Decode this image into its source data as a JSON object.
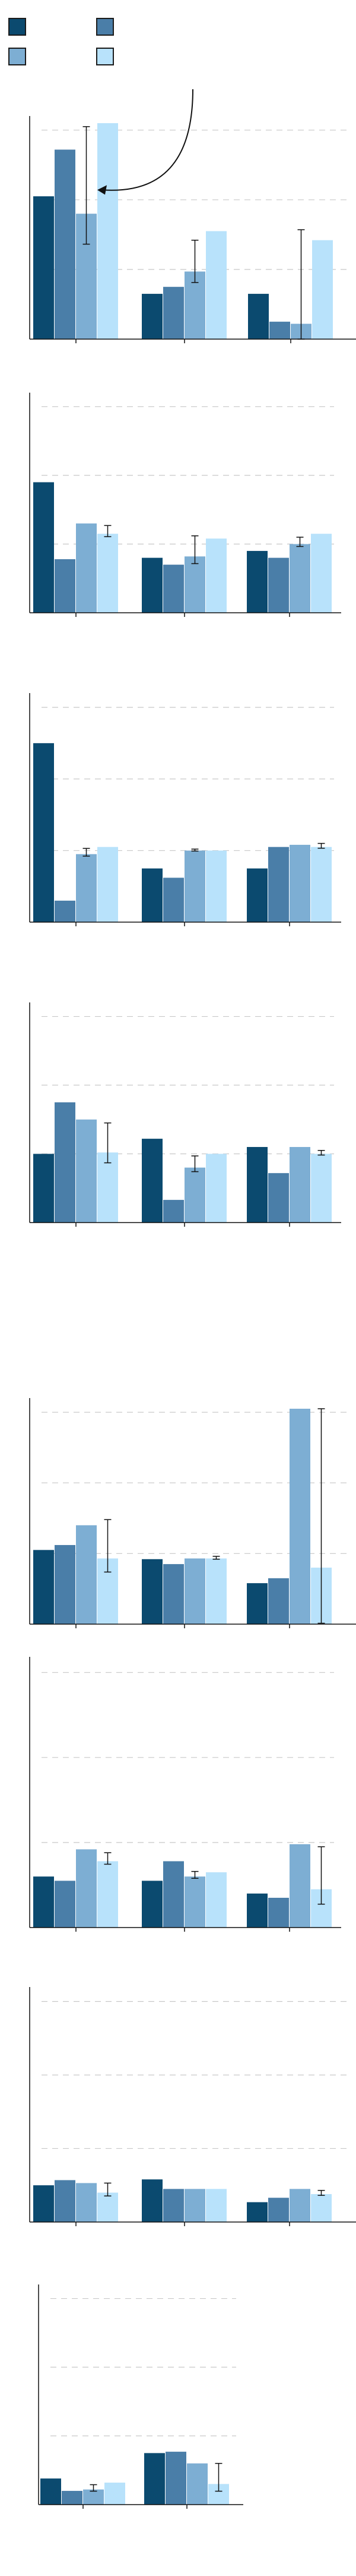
{
  "legend": {
    "entries": [
      {
        "name": "",
        "color": "#0b4a6f"
      },
      {
        "name": "",
        "color": "#4a7ea8"
      },
      {
        "name": "",
        "color": "#7daed3"
      },
      {
        "name": "",
        "color": "#b8e2fb"
      }
    ],
    "edge_color": "#1b1b1b"
  },
  "style": {
    "gridline_color": "#c8c8c8",
    "gridline_dash": "dashed",
    "axis_color": "#111111",
    "errorbar_color": "#111111",
    "annotation_arrow_color": "#111111"
  },
  "chart_data": [
    {
      "type": "bar",
      "title": "",
      "xlabel": "",
      "ylabel": "",
      "grid": true,
      "legend": "top-left",
      "ylim": [
        0,
        3.1
      ],
      "gridlines": [
        1,
        2,
        3
      ],
      "categories": [
        "",
        "",
        ""
      ],
      "series": [
        {
          "values": [
            2.05,
            0.65,
            0.65
          ],
          "errors": [
            null,
            null,
            null
          ]
        },
        {
          "values": [
            2.72,
            0.75,
            0.25
          ],
          "errors": [
            null,
            null,
            null
          ]
        },
        {
          "values": [
            1.8,
            0.97,
            0.22
          ],
          "errors": [
            1.25,
            0.45,
            1.35
          ]
        },
        {
          "values": [
            3.1,
            1.55,
            1.42
          ],
          "errors": [
            null,
            null,
            null
          ]
        }
      ],
      "annotation": {
        "type": "arrow",
        "from": "above",
        "to_category": 0,
        "to_series": 2
      }
    },
    {
      "type": "bar",
      "title": "",
      "xlabel": "",
      "ylabel": "",
      "grid": true,
      "ylim": [
        0,
        3.1
      ],
      "gridlines": [
        1,
        2,
        3
      ],
      "categories": [
        "",
        "",
        ""
      ],
      "series": [
        {
          "values": [
            1.9,
            0.8,
            0.9
          ],
          "errors": [
            null,
            null,
            null
          ]
        },
        {
          "values": [
            0.78,
            0.7,
            0.8
          ],
          "errors": [
            null,
            null,
            null
          ]
        },
        {
          "values": [
            1.3,
            0.82,
            1.0
          ],
          "errors": [
            null,
            0.3,
            0.1
          ]
        },
        {
          "values": [
            1.15,
            1.08,
            1.15
          ],
          "errors": [
            0.12,
            null,
            null
          ]
        }
      ]
    },
    {
      "type": "bar",
      "title": "",
      "xlabel": "",
      "ylabel": "",
      "grid": true,
      "ylim": [
        0,
        3.1
      ],
      "gridlines": [
        1,
        2,
        3
      ],
      "categories": [
        "",
        "",
        ""
      ],
      "series": [
        {
          "values": [
            2.5,
            0.75,
            0.75
          ],
          "errors": [
            null,
            null,
            null
          ]
        },
        {
          "values": [
            0.3,
            0.62,
            1.05
          ],
          "errors": [
            null,
            null,
            null
          ]
        },
        {
          "values": [
            0.95,
            1.0,
            1.08
          ],
          "errors": [
            0.08,
            0.02,
            null
          ]
        },
        {
          "values": [
            1.05,
            1.0,
            1.05
          ],
          "errors": [
            null,
            null,
            0.05
          ]
        }
      ]
    },
    {
      "type": "bar",
      "title": "",
      "xlabel": "",
      "ylabel": "",
      "grid": true,
      "ylim": [
        0,
        3.1
      ],
      "gridlines": [
        1,
        2,
        3
      ],
      "categories": [
        "",
        "",
        ""
      ],
      "series": [
        {
          "values": [
            1.0,
            1.22,
            1.1
          ],
          "errors": [
            null,
            null,
            null
          ]
        },
        {
          "values": [
            1.75,
            0.33,
            0.72
          ],
          "errors": [
            null,
            null,
            null
          ]
        },
        {
          "values": [
            1.5,
            0.8,
            1.1
          ],
          "errors": [
            null,
            0.17,
            null
          ]
        },
        {
          "values": [
            1.02,
            1.0,
            1.0
          ],
          "errors": [
            0.43,
            null,
            0.05
          ]
        }
      ]
    },
    {
      "type": "bar",
      "title": "",
      "xlabel": "",
      "ylabel": "",
      "grid": true,
      "ylim": [
        0,
        3.1
      ],
      "gridlines": [
        1,
        2,
        3
      ],
      "categories": [
        "",
        "",
        ""
      ],
      "series": [
        {
          "values": [
            1.05,
            0.92,
            0.58
          ],
          "errors": [
            null,
            null,
            null
          ]
        },
        {
          "values": [
            1.12,
            0.85,
            0.65
          ],
          "errors": [
            null,
            null,
            null
          ]
        },
        {
          "values": [
            1.4,
            0.93,
            3.05
          ],
          "errors": [
            null,
            null,
            null
          ]
        },
        {
          "values": [
            0.93,
            0.93,
            0.8
          ],
          "errors": [
            0.55,
            0.03,
            2.25
          ]
        }
      ]
    },
    {
      "type": "bar",
      "title": "",
      "xlabel": "",
      "ylabel": "",
      "grid": true,
      "ylim": [
        0,
        3.1
      ],
      "gridlines": [
        1,
        2,
        3
      ],
      "categories": [
        "",
        "",
        ""
      ],
      "series": [
        {
          "values": [
            0.6,
            0.55,
            0.4
          ],
          "errors": [
            null,
            null,
            null
          ]
        },
        {
          "values": [
            0.55,
            0.78,
            0.35
          ],
          "errors": [
            null,
            null,
            null
          ]
        },
        {
          "values": [
            0.92,
            0.6,
            0.98
          ],
          "errors": [
            null,
            0.06,
            null
          ]
        },
        {
          "values": [
            0.78,
            0.65,
            0.45
          ],
          "errors": [
            0.1,
            null,
            0.5
          ]
        }
      ]
    },
    {
      "type": "bar",
      "title": "",
      "xlabel": "",
      "ylabel": "",
      "grid": true,
      "ylim": [
        0,
        3.1
      ],
      "gridlines": [
        1,
        2,
        3
      ],
      "categories": [
        "",
        "",
        ""
      ],
      "series": [
        {
          "values": [
            0.5,
            0.58,
            0.27
          ],
          "errors": [
            null,
            null,
            null
          ]
        },
        {
          "values": [
            0.57,
            0.45,
            0.33
          ],
          "errors": [
            null,
            null,
            null
          ]
        },
        {
          "values": [
            0.53,
            0.45,
            0.45
          ],
          "errors": [
            null,
            null,
            null
          ]
        },
        {
          "values": [
            0.4,
            0.45,
            0.38
          ],
          "errors": [
            0.13,
            null,
            0.05
          ]
        }
      ]
    },
    {
      "type": "bar",
      "title": "",
      "xlabel": "",
      "ylabel": "",
      "grid": true,
      "ylim": [
        0,
        3.1
      ],
      "gridlines": [
        1,
        2,
        3
      ],
      "categories": [
        "",
        ""
      ],
      "series": [
        {
          "values": [
            0.38,
            0.75
          ],
          "errors": [
            null,
            null
          ]
        },
        {
          "values": [
            0.2,
            0.77
          ],
          "errors": [
            null,
            null
          ]
        },
        {
          "values": [
            0.22,
            0.6
          ],
          "errors": [
            0.07,
            null
          ]
        },
        {
          "values": [
            0.32,
            0.3
          ],
          "errors": [
            null,
            0.3
          ]
        }
      ]
    }
  ]
}
